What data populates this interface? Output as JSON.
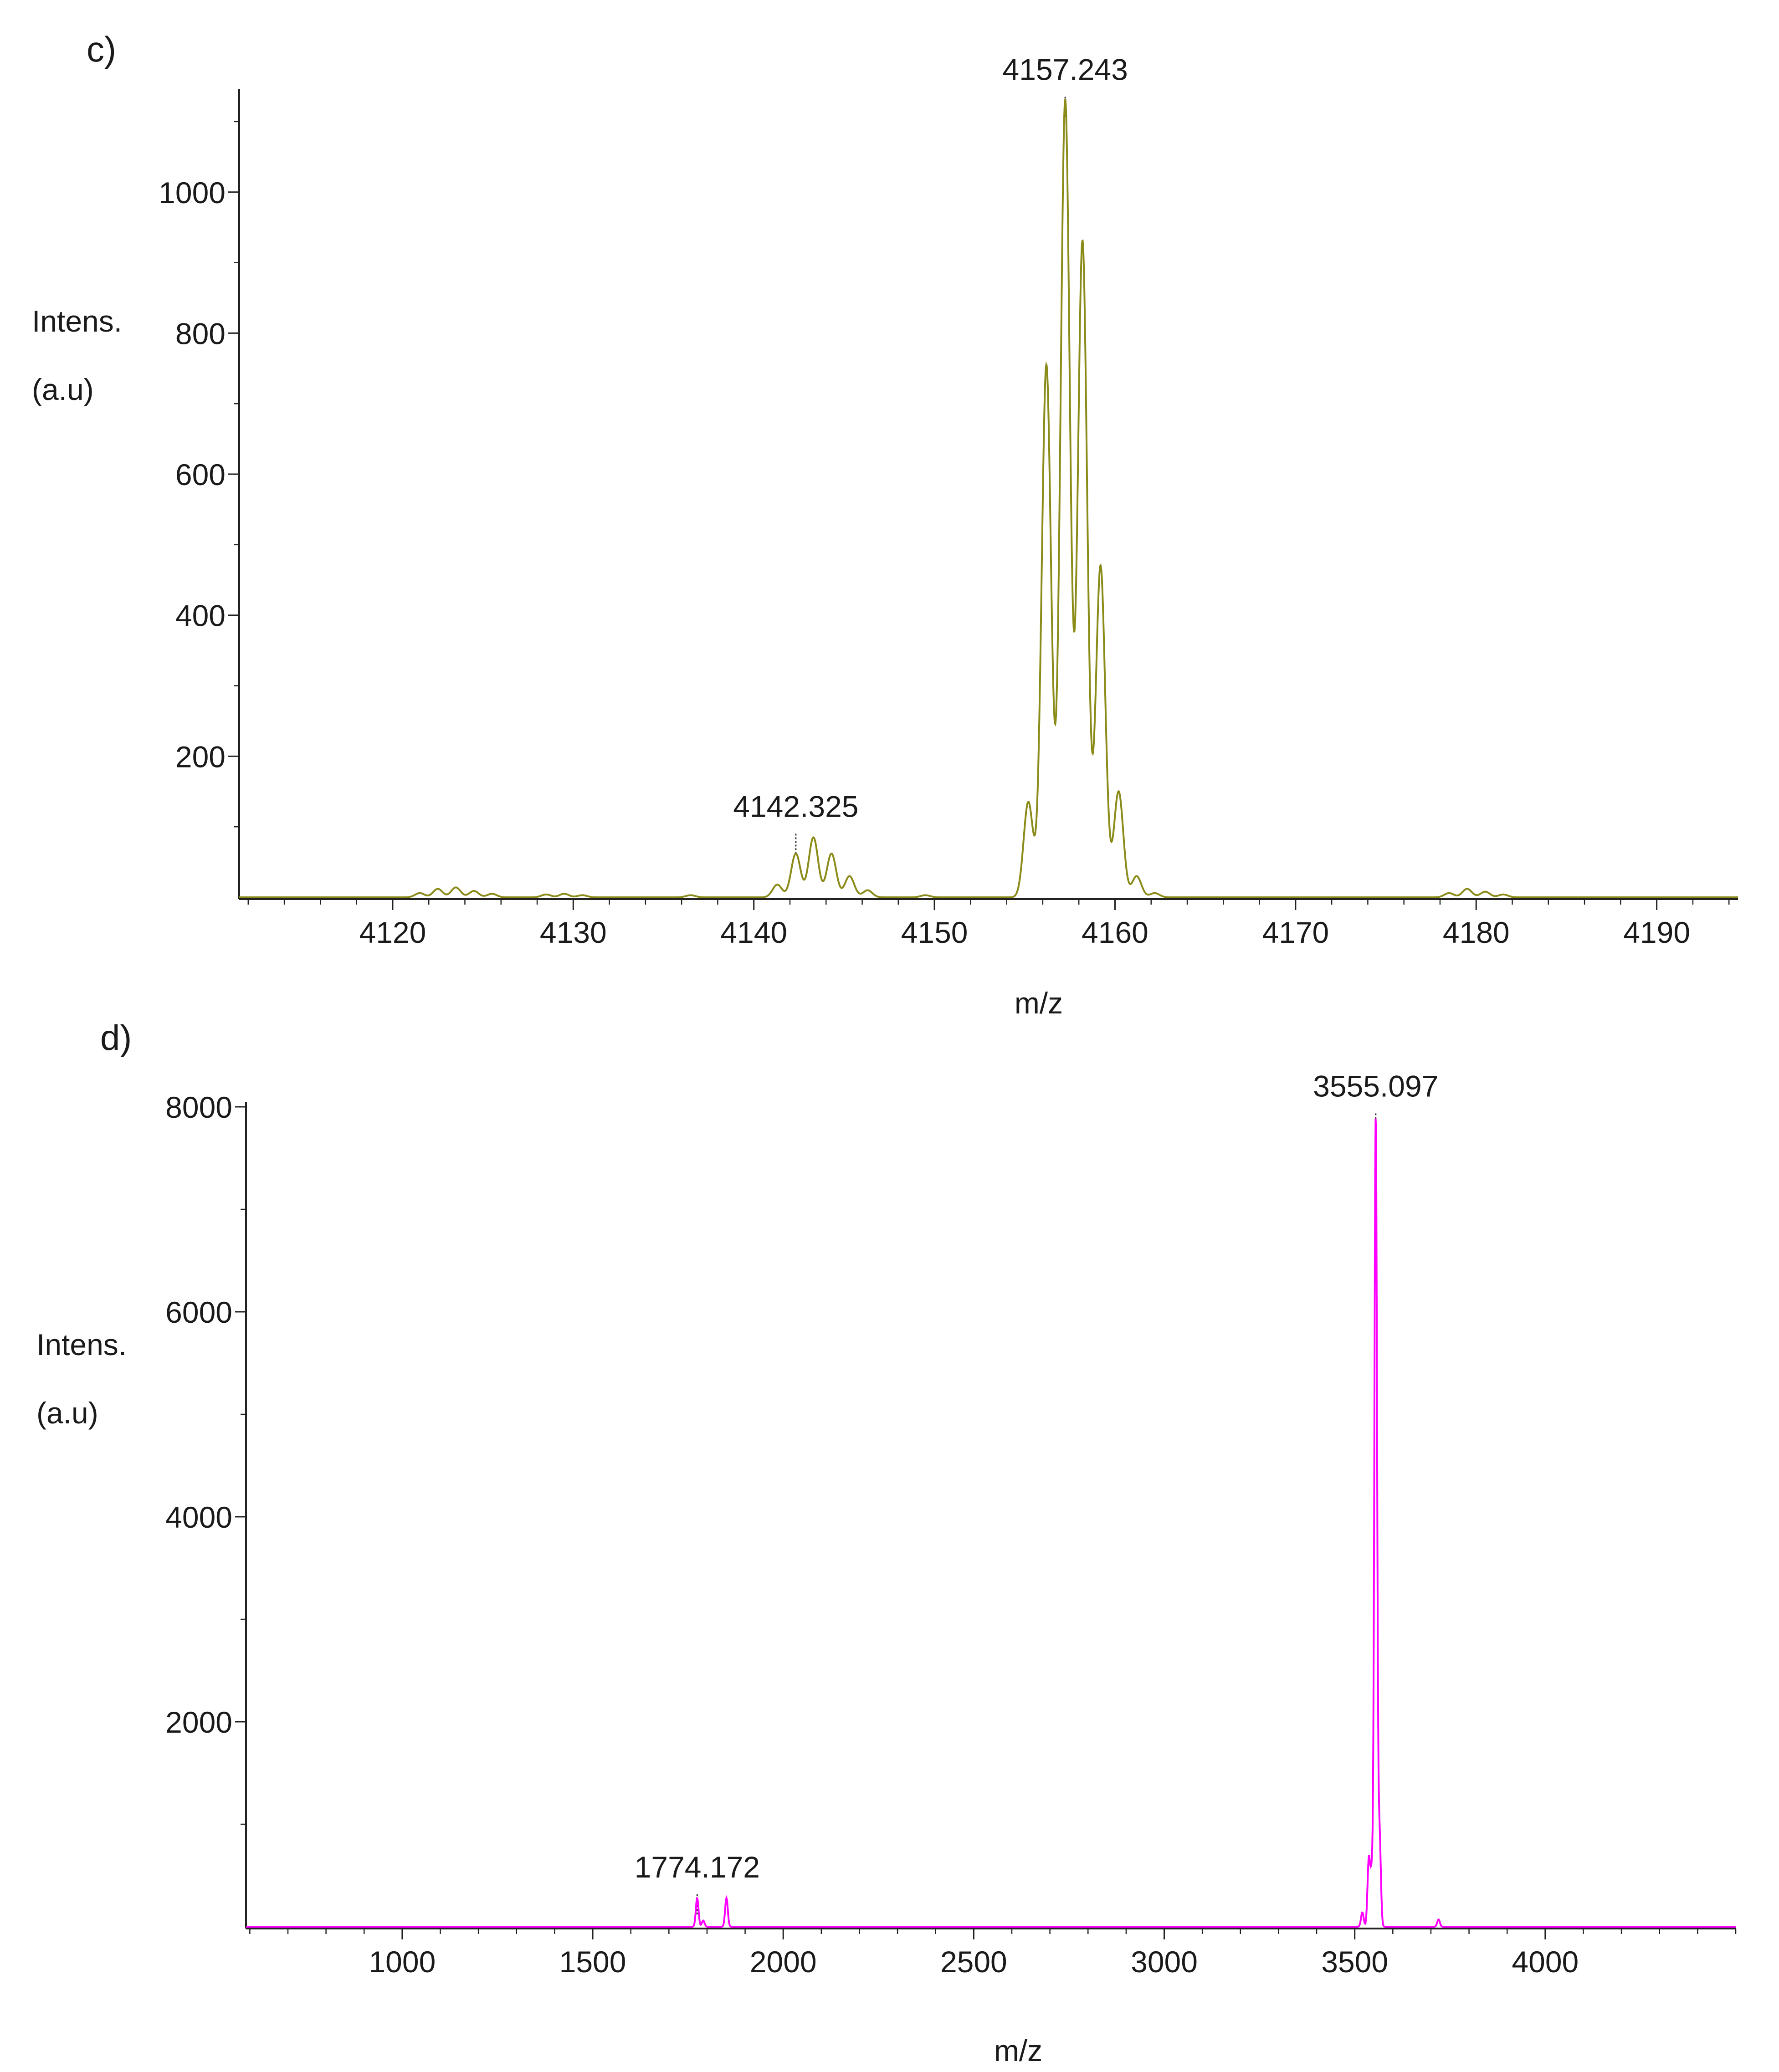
{
  "chart_data": [
    {
      "panel": "c)",
      "type": "line",
      "xlabel": "m/z",
      "ylabel_lines": [
        "Intens.",
        "(a.u)"
      ],
      "xlim": [
        4111.5,
        4194.5
      ],
      "ylim": [
        0,
        1140
      ],
      "x_ticks": [
        4120,
        4130,
        4140,
        4150,
        4160,
        4170,
        4180,
        4190
      ],
      "y_ticks": [
        200,
        400,
        600,
        800,
        1000
      ],
      "grid": false,
      "color": "#8b8b1a",
      "peak_labels": [
        {
          "x": 4142.325,
          "y": 85,
          "text": "4142.325"
        },
        {
          "x": 4157.243,
          "y": 1130,
          "text": "4157.243"
        }
      ],
      "peaks": [
        {
          "x": 4121.5,
          "y": 6
        },
        {
          "x": 4122.5,
          "y": 12
        },
        {
          "x": 4123.5,
          "y": 14
        },
        {
          "x": 4124.5,
          "y": 9
        },
        {
          "x": 4125.5,
          "y": 5
        },
        {
          "x": 4128.5,
          "y": 4
        },
        {
          "x": 4129.5,
          "y": 5
        },
        {
          "x": 4130.5,
          "y": 3
        },
        {
          "x": 4136.5,
          "y": 3
        },
        {
          "x": 4141.3,
          "y": 18
        },
        {
          "x": 4142.325,
          "y": 62
        },
        {
          "x": 4143.3,
          "y": 85
        },
        {
          "x": 4144.3,
          "y": 62
        },
        {
          "x": 4145.3,
          "y": 30
        },
        {
          "x": 4146.3,
          "y": 10
        },
        {
          "x": 4149.5,
          "y": 3
        },
        {
          "x": 4155.2,
          "y": 135
        },
        {
          "x": 4156.2,
          "y": 755
        },
        {
          "x": 4157.243,
          "y": 1130
        },
        {
          "x": 4158.2,
          "y": 930
        },
        {
          "x": 4159.2,
          "y": 470
        },
        {
          "x": 4160.2,
          "y": 150
        },
        {
          "x": 4161.2,
          "y": 30
        },
        {
          "x": 4162.2,
          "y": 6
        },
        {
          "x": 4178.5,
          "y": 6
        },
        {
          "x": 4179.5,
          "y": 12
        },
        {
          "x": 4180.5,
          "y": 8
        },
        {
          "x": 4181.5,
          "y": 4
        }
      ]
    },
    {
      "panel": "d)",
      "type": "line",
      "xlabel": "m/z",
      "ylabel_lines": [
        "Intens.",
        "(a.u)"
      ],
      "xlim": [
        590,
        4500
      ],
      "ylim": [
        0,
        8000
      ],
      "x_ticks": [
        1000,
        1500,
        2000,
        2500,
        3000,
        3500,
        4000
      ],
      "y_ticks": [
        2000,
        4000,
        6000,
        8000
      ],
      "grid": false,
      "color": "#ff00ff",
      "peak_labels": [
        {
          "x": 1774.172,
          "y": 280,
          "text": "1774.172"
        },
        {
          "x": 3555.097,
          "y": 7900,
          "text": "3555.097"
        }
      ],
      "peaks": [
        {
          "x": 1774.172,
          "y": 280
        },
        {
          "x": 1790,
          "y": 60
        },
        {
          "x": 1851,
          "y": 280
        },
        {
          "x": 3520,
          "y": 140
        },
        {
          "x": 3537,
          "y": 650
        },
        {
          "x": 3545,
          "y": 500
        },
        {
          "x": 3555.097,
          "y": 7900
        },
        {
          "x": 3565,
          "y": 900
        },
        {
          "x": 3720,
          "y": 70
        }
      ]
    }
  ]
}
